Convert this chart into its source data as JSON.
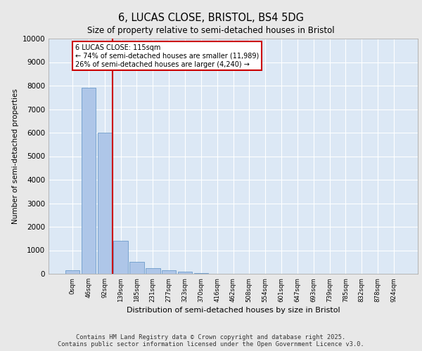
{
  "title": "6, LUCAS CLOSE, BRISTOL, BS4 5DG",
  "subtitle": "Size of property relative to semi-detached houses in Bristol",
  "xlabel": "Distribution of semi-detached houses by size in Bristol",
  "ylabel": "Number of semi-detached properties",
  "bar_color": "#aec6e8",
  "bar_edge_color": "#5a8fc2",
  "background_color": "#dce8f5",
  "grid_color": "#ffffff",
  "vline_color": "#cc0000",
  "vline_x": 2.5,
  "annotation_text": "6 LUCAS CLOSE: 115sqm\n← 74% of semi-detached houses are smaller (11,989)\n26% of semi-detached houses are larger (4,240) →",
  "annotation_box_color": "#cc0000",
  "footer": "Contains HM Land Registry data © Crown copyright and database right 2025.\nContains public sector information licensed under the Open Government Licence v3.0.",
  "categories": [
    "0sqm",
    "46sqm",
    "92sqm",
    "139sqm",
    "185sqm",
    "231sqm",
    "277sqm",
    "323sqm",
    "370sqm",
    "416sqm",
    "462sqm",
    "508sqm",
    "554sqm",
    "601sqm",
    "647sqm",
    "693sqm",
    "739sqm",
    "785sqm",
    "832sqm",
    "878sqm",
    "924sqm"
  ],
  "values": [
    150,
    7900,
    6000,
    1400,
    500,
    230,
    160,
    80,
    30,
    0,
    0,
    0,
    0,
    0,
    0,
    0,
    0,
    0,
    0,
    0,
    0
  ],
  "ylim": [
    0,
    10000
  ],
  "yticks": [
    0,
    1000,
    2000,
    3000,
    4000,
    5000,
    6000,
    7000,
    8000,
    9000,
    10000
  ]
}
